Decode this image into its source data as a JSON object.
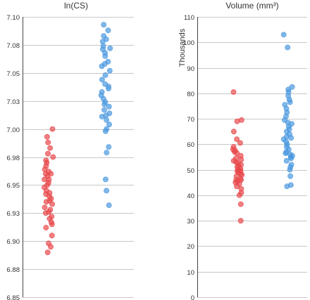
{
  "chart_data": [
    {
      "type": "scatter",
      "title": "ln(CS)",
      "ylabel": "",
      "ylim": [
        6.85,
        7.1
      ],
      "yticks": [
        "6.85",
        "6.88",
        "6.90",
        "6.93",
        "6.95",
        "6.98",
        "7.00",
        "7.03",
        "7.05",
        "7.08",
        "7.10"
      ],
      "grid": true,
      "series": [
        {
          "color": "#e8484b",
          "values": [
            7.0,
            6.993,
            6.988,
            6.983,
            6.978,
            6.975,
            6.972,
            6.97,
            6.967,
            6.964,
            6.962,
            6.96,
            6.958,
            6.955,
            6.952,
            6.95,
            6.948,
            6.945,
            6.942,
            6.94,
            6.938,
            6.936,
            6.933,
            6.93,
            6.928,
            6.925,
            6.922,
            6.92,
            6.917,
            6.915,
            6.912,
            6.905,
            6.898,
            6.895,
            6.89,
            6.96,
            6.955,
            6.943,
            6.935,
            6.926
          ]
        },
        {
          "color": "#4a98e0",
          "values": [
            7.093,
            7.088,
            7.083,
            7.08,
            7.078,
            7.074,
            7.071,
            7.068,
            7.065,
            7.06,
            7.056,
            7.052,
            7.048,
            7.044,
            7.04,
            7.036,
            7.033,
            7.03,
            7.027,
            7.024,
            7.02,
            7.017,
            7.014,
            7.011,
            7.008,
            7.004,
            7.0,
            6.998,
            6.984,
            6.979,
            6.955,
            6.945,
            6.932,
            7.072,
            7.058,
            7.038,
            7.022,
            7.012
          ]
        }
      ]
    },
    {
      "type": "scatter",
      "title": "Volume (mm³)",
      "ylabel": "Thousands",
      "ylim": [
        0,
        110
      ],
      "yticks": [
        "0",
        "10",
        "20",
        "30",
        "40",
        "50",
        "60",
        "70",
        "80",
        "90",
        "100",
        "110"
      ],
      "grid": true,
      "series": [
        {
          "color": "#e8484b",
          "values": [
            80.5,
            69.5,
            69.0,
            65.0,
            62.0,
            60.5,
            59.0,
            58.0,
            57.5,
            56.5,
            55.5,
            54.5,
            54.0,
            53.5,
            52.5,
            52.0,
            51.5,
            51.0,
            50.5,
            50.0,
            49.5,
            49.0,
            48.5,
            48.0,
            47.5,
            46.5,
            46.0,
            45.5,
            45.0,
            44.5,
            43.5,
            41.0,
            40.0,
            36.5,
            30.0,
            57.0,
            53.0,
            49.5,
            46.0,
            42.5
          ]
        },
        {
          "color": "#4a98e0",
          "values": [
            103.0,
            98.0,
            82.5,
            81.5,
            80.5,
            79.0,
            77.5,
            76.5,
            75.5,
            74.0,
            72.5,
            71.0,
            69.5,
            68.5,
            67.0,
            66.0,
            65.0,
            64.0,
            63.0,
            62.0,
            61.0,
            60.0,
            59.0,
            58.0,
            57.0,
            56.0,
            55.5,
            55.0,
            54.5,
            53.5,
            52.0,
            50.0,
            47.5,
            44.0,
            43.5,
            68.0,
            62.5,
            56.5,
            51.0
          ]
        }
      ]
    }
  ]
}
